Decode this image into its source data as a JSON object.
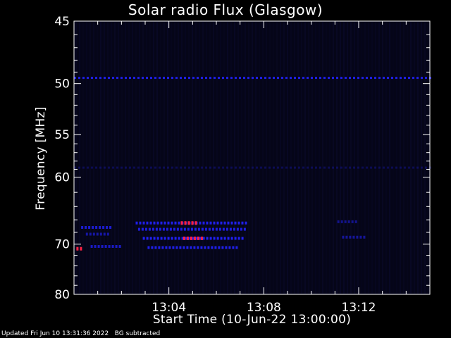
{
  "chart_data": {
    "type": "heatmap",
    "title": "Solar radio Flux (Glasgow)",
    "xlabel": "Start Time (10-Jun-22 13:00:00)",
    "ylabel": "Frequency [MHz]",
    "x_range_minutes": [
      0,
      15
    ],
    "x_ticks": [
      {
        "minute": 4,
        "label": "13:04"
      },
      {
        "minute": 8,
        "label": "13:08"
      },
      {
        "minute": 12,
        "label": "13:12"
      }
    ],
    "y_scale": "reciprocal",
    "ylim": [
      45,
      80
    ],
    "y_ticks": [
      {
        "value": 45,
        "label": "45"
      },
      {
        "value": 50,
        "label": "50"
      },
      {
        "value": 55,
        "label": "55"
      },
      {
        "value": 60,
        "label": "60"
      },
      {
        "value": 70,
        "label": "70"
      },
      {
        "value": 80,
        "label": "80"
      }
    ],
    "y_minor_ticks": [
      46,
      47,
      48,
      49,
      51,
      52,
      53,
      54,
      56,
      57,
      58,
      59,
      62,
      64,
      66,
      68,
      72,
      74,
      76,
      78
    ],
    "colors": {
      "background": "#000000",
      "plot_bg": "#050518",
      "emission": "#2222ff",
      "strong": "#ff2244"
    },
    "features": [
      {
        "kind": "band",
        "freq": 49.5,
        "t_start": 0,
        "t_end": 15,
        "intensity": 0.9
      },
      {
        "kind": "band",
        "freq": 58.8,
        "t_start": 0,
        "t_end": 15,
        "intensity": 0.25
      },
      {
        "kind": "burst",
        "freq": 66.5,
        "t_start": 2.6,
        "t_end": 7.3,
        "intensity": 0.9
      },
      {
        "kind": "burst",
        "freq": 67.2,
        "t_start": 0.3,
        "t_end": 1.5,
        "intensity": 0.8
      },
      {
        "kind": "burst",
        "freq": 67.5,
        "t_start": 2.7,
        "t_end": 7.2,
        "intensity": 0.85
      },
      {
        "kind": "burst",
        "freq": 68.3,
        "t_start": 0.5,
        "t_end": 1.4,
        "intensity": 0.6
      },
      {
        "kind": "burst",
        "freq": 69.0,
        "t_start": 2.9,
        "t_end": 7.1,
        "intensity": 0.95
      },
      {
        "kind": "burst",
        "freq": 70.4,
        "t_start": 0.7,
        "t_end": 2.0,
        "intensity": 0.75
      },
      {
        "kind": "burst",
        "freq": 70.6,
        "t_start": 3.1,
        "t_end": 6.9,
        "intensity": 0.9
      },
      {
        "kind": "burst",
        "freq": 66.3,
        "t_start": 11.1,
        "t_end": 11.9,
        "intensity": 0.5
      },
      {
        "kind": "burst",
        "freq": 68.8,
        "t_start": 11.3,
        "t_end": 12.3,
        "intensity": 0.55
      },
      {
        "kind": "spot",
        "freq": 70.8,
        "t_start": 0.1,
        "t_end": 0.35,
        "intensity": 1.0
      },
      {
        "kind": "spot",
        "freq": 66.5,
        "t_start": 4.5,
        "t_end": 5.2,
        "intensity": 1.0
      },
      {
        "kind": "spot",
        "freq": 69.0,
        "t_start": 4.6,
        "t_end": 5.4,
        "intensity": 1.0
      }
    ]
  },
  "footer": {
    "updated": "Updated Fri Jun 10 13:31:36 2022",
    "mode": "BG subtracted"
  }
}
